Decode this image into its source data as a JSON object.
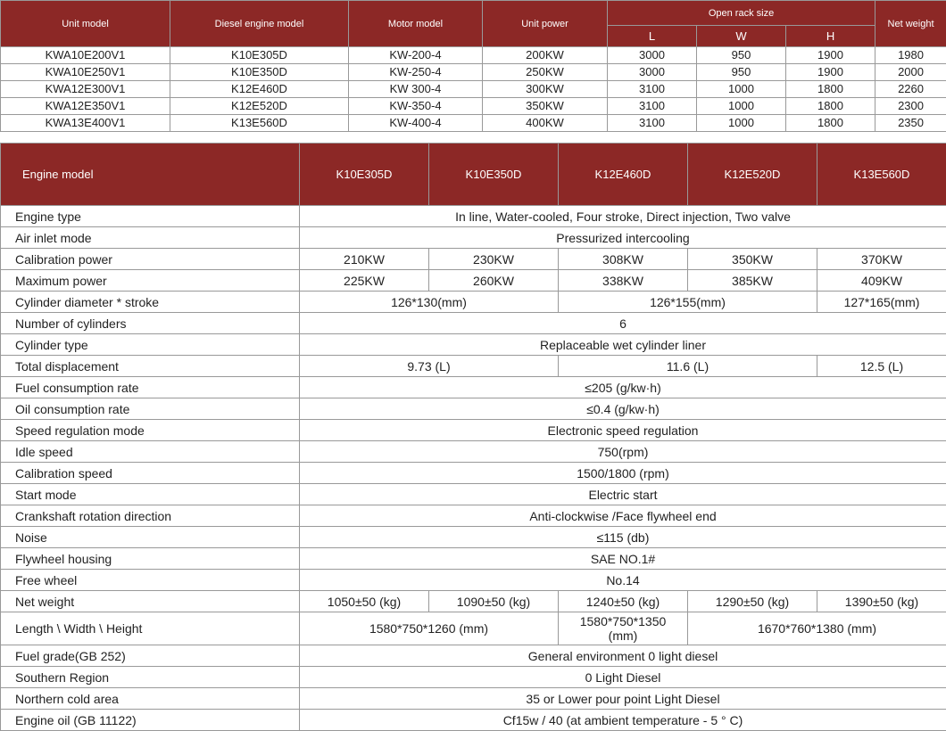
{
  "colors": {
    "header_bg": "#8c2826",
    "header_fg": "#ffffff",
    "border": "#999999",
    "text": "#222222"
  },
  "table1": {
    "headers": {
      "unit_model": "Unit model",
      "diesel_engine_model": "Diesel engine model",
      "motor_model": "Motor model",
      "unit_power": "Unit power",
      "open_rack_size": "Open rack size",
      "L": "L",
      "W": "W",
      "H": "H",
      "net_weight": "Net weight"
    },
    "rows": [
      [
        "KWA10E200V1",
        "K10E305D",
        "KW-200-4",
        "200KW",
        "3000",
        "950",
        "1900",
        "1980"
      ],
      [
        "KWA10E250V1",
        "K10E350D",
        "KW-250-4",
        "250KW",
        "3000",
        "950",
        "1900",
        "2000"
      ],
      [
        "KWA12E300V1",
        "K12E460D",
        "KW 300-4",
        "300KW",
        "3100",
        "1000",
        "1800",
        "2260"
      ],
      [
        "KWA12E350V1",
        "K12E520D",
        "KW-350-4",
        "350KW",
        "3100",
        "1000",
        "1800",
        "2300"
      ],
      [
        "KWA13E400V1",
        "K13E560D",
        "KW-400-4",
        "400KW",
        "3100",
        "1000",
        "1800",
        "2350"
      ]
    ]
  },
  "table2": {
    "header_label": "Engine model",
    "models": [
      "K10E305D",
      "K10E350D",
      "K12E460D",
      "K12E520D",
      "K13E560D"
    ],
    "rows": {
      "engine_type": {
        "label": "Engine type",
        "span5": "In line, Water-cooled, Four stroke, Direct injection, Two valve"
      },
      "air_inlet": {
        "label": "Air inlet mode",
        "span5": "Pressurized intercooling"
      },
      "calib_power": {
        "label": "Calibration power",
        "v": [
          "210KW",
          "230KW",
          "308KW",
          "350KW",
          "370KW"
        ]
      },
      "max_power": {
        "label": "Maximum power",
        "v": [
          "225KW",
          "260KW",
          "338KW",
          "385KW",
          "409KW"
        ]
      },
      "cyl_stroke": {
        "label": "Cylinder diameter * stroke",
        "g": [
          "126*130(mm)",
          "126*155(mm)",
          "127*165(mm)"
        ]
      },
      "num_cyl": {
        "label": "Number of cylinders",
        "span5": "6"
      },
      "cyl_type": {
        "label": "Cylinder type",
        "span5": "Replaceable wet cylinder liner"
      },
      "disp": {
        "label": "Total displacement",
        "g": [
          "9.73 (L)",
          "11.6 (L)",
          "12.5 (L)"
        ]
      },
      "fuel_cons": {
        "label": "Fuel consumption rate",
        "span5": "≤205 (g/kw·h)"
      },
      "oil_cons": {
        "label": "Oil consumption rate",
        "span5": "≤0.4 (g/kw·h)"
      },
      "speed_reg": {
        "label": "Speed regulation mode",
        "span5": "Electronic speed regulation"
      },
      "idle": {
        "label": "Idle speed",
        "span5": "750(rpm)"
      },
      "calib_speed": {
        "label": "Calibration speed",
        "span5": "1500/1800 (rpm)"
      },
      "start": {
        "label": "Start mode",
        "span5": "Electric start"
      },
      "crank": {
        "label": "Crankshaft rotation direction",
        "span5": "Anti-clockwise /Face flywheel end"
      },
      "noise": {
        "label": "Noise",
        "span5": "≤115 (db)"
      },
      "flywheel": {
        "label": "Flywheel housing",
        "span5": "SAE NO.1#"
      },
      "free": {
        "label": "Free wheel",
        "span5": "No.14"
      },
      "net_wt": {
        "label": "Net weight",
        "v": [
          "1050±50 (kg)",
          "1090±50 (kg)",
          "1240±50 (kg)",
          "1290±50 (kg)",
          "1390±50 (kg)"
        ]
      },
      "lwh": {
        "label": "Length \\ Width \\ Height",
        "g2": [
          "1580*750*1260 (mm)",
          "1580*750*1350 (mm)",
          "1670*760*1380 (mm)"
        ]
      },
      "fuel_grade": {
        "label": "Fuel grade(GB 252)",
        "span5": "General environment 0 light diesel"
      },
      "south": {
        "label": "Southern Region",
        "span5": "0 Light Diesel"
      },
      "north": {
        "label": "Northern cold area",
        "span5": "35 or Lower pour point Light Diesel"
      },
      "oil": {
        "label": "Engine oil (GB 11122)",
        "span5": "Cf15w / 40 (at ambient temperature - 5 ° C)"
      }
    }
  }
}
